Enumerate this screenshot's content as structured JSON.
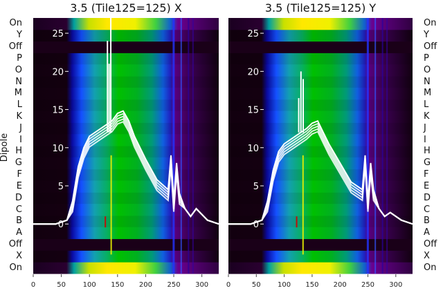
{
  "chart_data": [
    {
      "type": "heatmap",
      "title": "3.5 (Tile125=125) X",
      "xlim": [
        0,
        330
      ],
      "x_ticks": [
        0,
        50,
        100,
        150,
        200,
        250,
        300
      ],
      "y_ticks": [
        0,
        5,
        10,
        15,
        20,
        25
      ],
      "ylim": [
        -6.5,
        27
      ],
      "row_labels": [
        "On",
        "X",
        "Off",
        "A",
        "B",
        "C",
        "D",
        "E",
        "F",
        "G",
        "H",
        "I",
        "J",
        "K",
        "L",
        "M",
        "N",
        "O",
        "P",
        "Off",
        "Y",
        "On"
      ],
      "ylabel": "Dipole",
      "trace_x": [
        0,
        40,
        60,
        70,
        80,
        90,
        100,
        120,
        140,
        150,
        160,
        170,
        180,
        200,
        220,
        240,
        245,
        250,
        255,
        260,
        270,
        280,
        290,
        310,
        330
      ],
      "trace_y": [
        0,
        0,
        0.5,
        3,
        7.5,
        10,
        11.5,
        12.5,
        13.5,
        14.5,
        14.8,
        13.5,
        11.5,
        8.5,
        5.8,
        4.5,
        9,
        3,
        8,
        4,
        2,
        1,
        2,
        0.5,
        0
      ],
      "spikes": [
        {
          "x": 132,
          "y": 24
        },
        {
          "x": 135,
          "y": 21
        },
        {
          "x": 138,
          "y": 27
        }
      ]
    },
    {
      "type": "heatmap",
      "title": "3.5 (Tile125=125) Y",
      "xlim": [
        0,
        330
      ],
      "x_ticks": [
        0,
        50,
        100,
        150,
        200,
        250,
        300
      ],
      "y_ticks": [
        0,
        5,
        10,
        15,
        20,
        25
      ],
      "ylim": [
        -6.5,
        27
      ],
      "row_labels": [
        "On",
        "X",
        "Off",
        "A",
        "B",
        "C",
        "D",
        "E",
        "F",
        "G",
        "H",
        "I",
        "J",
        "K",
        "L",
        "M",
        "N",
        "O",
        "P",
        "Off",
        "Y",
        "On"
      ],
      "trace_x": [
        0,
        40,
        60,
        70,
        80,
        90,
        100,
        120,
        140,
        150,
        160,
        170,
        180,
        200,
        220,
        240,
        245,
        250,
        255,
        260,
        270,
        280,
        290,
        310,
        330
      ],
      "trace_y": [
        0,
        0,
        0.5,
        3,
        7,
        9.5,
        10.5,
        11.5,
        12.5,
        13.2,
        13.5,
        12,
        10.5,
        8,
        5.5,
        4.5,
        9,
        3,
        8,
        4.5,
        2,
        1,
        1.5,
        0.5,
        0
      ],
      "spikes": [
        {
          "x": 126,
          "y": 16.5
        },
        {
          "x": 130,
          "y": 20
        },
        {
          "x": 134,
          "y": 19
        }
      ]
    }
  ]
}
